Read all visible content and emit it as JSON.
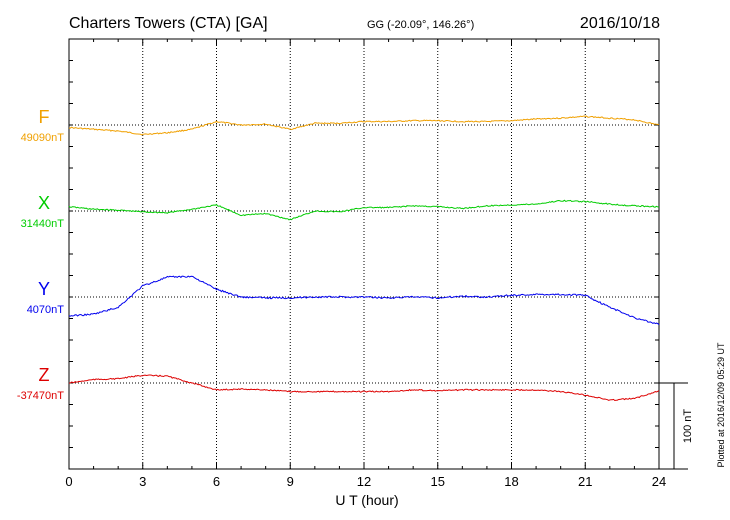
{
  "header": {
    "station": "Charters Towers (CTA)  [GA]",
    "coords": "GG (-20.09°, 146.26°)",
    "date": "2016/10/18"
  },
  "footer": {
    "xlabel": "U T (hour)",
    "plotted": "Plotted at 2016/12/09 05:29 UT",
    "scale_label": "100 nT"
  },
  "chart_data": {
    "type": "line",
    "title": "Charters Towers (CTA)  [GA]",
    "xlabel": "U T (hour)",
    "xlim": [
      0,
      24
    ],
    "x_ticks": [
      "0",
      "3",
      "6",
      "9",
      "12",
      "15",
      "18",
      "21",
      "24"
    ],
    "scale_bar_nT": 100,
    "grid": true,
    "x": [
      0,
      1,
      2,
      3,
      4,
      5,
      6,
      7,
      8,
      9,
      10,
      11,
      12,
      13,
      14,
      15,
      16,
      17,
      18,
      19,
      20,
      21,
      22,
      23,
      24
    ],
    "series": [
      {
        "name": "F",
        "baseline_label": "49090nT",
        "baseline_nT": 49090,
        "color": "#f0a000",
        "values": [
          49087,
          49085,
          49083,
          49079,
          49081,
          49085,
          49094,
          49090,
          49091,
          49085,
          49092,
          49092,
          49094,
          49094,
          49095,
          49095,
          49094,
          49094,
          49095,
          49097,
          49098,
          49100,
          49098,
          49096,
          49090
        ]
      },
      {
        "name": "X",
        "baseline_label": "31440nT",
        "baseline_nT": 31440,
        "color": "#00cc00",
        "values": [
          31445,
          31442,
          31441,
          31439,
          31438,
          31442,
          31447,
          31435,
          31437,
          31430,
          31440,
          31439,
          31444,
          31444,
          31446,
          31445,
          31443,
          31446,
          31447,
          31448,
          31452,
          31451,
          31448,
          31446,
          31445
        ]
      },
      {
        "name": "Y",
        "baseline_label": "4070nT",
        "baseline_nT": 4070,
        "color": "#0000ee",
        "values": [
          4048,
          4050,
          4058,
          4083,
          4093,
          4094,
          4079,
          4070,
          4069,
          4069,
          4070,
          4070,
          4070,
          4069,
          4070,
          4069,
          4071,
          4070,
          4072,
          4073,
          4073,
          4072,
          4058,
          4046,
          4038
        ]
      },
      {
        "name": "Z",
        "baseline_label": "-37470nT",
        "baseline_nT": -37470,
        "color": "#dd0000",
        "values": [
          -37470,
          -37466,
          -37465,
          -37461,
          -37462,
          -37470,
          -37478,
          -37477,
          -37478,
          -37480,
          -37480,
          -37480,
          -37480,
          -37480,
          -37478,
          -37479,
          -37478,
          -37478,
          -37478,
          -37478,
          -37480,
          -37484,
          -37490,
          -37488,
          -37479
        ]
      }
    ]
  }
}
